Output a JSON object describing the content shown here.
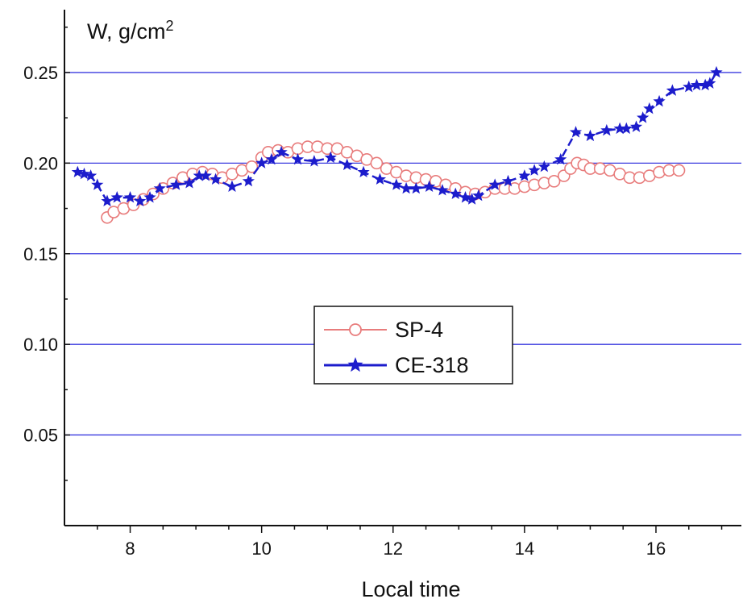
{
  "chart_data": {
    "type": "scatter",
    "title": "",
    "ylabel": "W, g/cm",
    "ylabel_sup": "2",
    "xlabel": "Local time",
    "xlim": [
      7.0,
      17.3
    ],
    "ylim": [
      0.0,
      0.29
    ],
    "x_ticks": [
      8,
      10,
      12,
      14,
      16
    ],
    "y_ticks": [
      0.05,
      0.1,
      0.15,
      0.2,
      0.25
    ],
    "y_tick_labels": [
      "0.05",
      "0.10",
      "0.15",
      "0.20",
      "0.25"
    ],
    "grid": "horizontal",
    "grid_color": "#3a3adf",
    "legend_position": "center",
    "series": [
      {
        "name": "SP-4",
        "color": "#e87c7c",
        "marker": "circle",
        "line": "solid",
        "x": [
          7.65,
          7.75,
          7.9,
          8.05,
          8.2,
          8.35,
          8.5,
          8.65,
          8.8,
          8.95,
          9.1,
          9.25,
          9.4,
          9.55,
          9.7,
          9.85,
          10.0,
          10.1,
          10.25,
          10.4,
          10.55,
          10.7,
          10.85,
          11.0,
          11.15,
          11.3,
          11.45,
          11.6,
          11.75,
          11.9,
          12.05,
          12.2,
          12.35,
          12.5,
          12.65,
          12.8,
          12.95,
          13.1,
          13.25,
          13.4,
          13.55,
          13.7,
          13.85,
          14.0,
          14.15,
          14.3,
          14.45,
          14.6,
          14.7,
          14.8,
          14.9,
          15.0,
          15.15,
          15.3,
          15.45,
          15.6,
          15.75,
          15.9,
          16.05,
          16.2,
          16.35
        ],
        "y": [
          0.17,
          0.173,
          0.175,
          0.177,
          0.18,
          0.183,
          0.186,
          0.189,
          0.192,
          0.194,
          0.195,
          0.194,
          0.192,
          0.194,
          0.196,
          0.198,
          0.203,
          0.206,
          0.207,
          0.206,
          0.208,
          0.209,
          0.209,
          0.208,
          0.208,
          0.206,
          0.204,
          0.202,
          0.2,
          0.197,
          0.195,
          0.193,
          0.192,
          0.191,
          0.19,
          0.188,
          0.186,
          0.184,
          0.183,
          0.184,
          0.186,
          0.186,
          0.186,
          0.187,
          0.188,
          0.189,
          0.19,
          0.193,
          0.197,
          0.2,
          0.199,
          0.197,
          0.197,
          0.196,
          0.194,
          0.192,
          0.192,
          0.193,
          0.195,
          0.196,
          0.196
        ]
      },
      {
        "name": "CE-318",
        "color": "#1c1ccc",
        "marker": "star",
        "line": "dashed",
        "x": [
          7.2,
          7.3,
          7.4,
          7.5,
          7.65,
          7.8,
          8.0,
          8.15,
          8.3,
          8.45,
          8.7,
          8.9,
          9.05,
          9.15,
          9.3,
          9.55,
          9.8,
          10.0,
          10.15,
          10.3,
          10.55,
          10.8,
          11.05,
          11.3,
          11.55,
          11.8,
          12.05,
          12.2,
          12.35,
          12.55,
          12.75,
          12.95,
          13.1,
          13.2,
          13.3,
          13.55,
          13.75,
          14.0,
          14.15,
          14.3,
          14.55,
          14.78,
          15.0,
          15.25,
          15.45,
          15.55,
          15.7,
          15.8,
          15.9,
          16.05,
          16.25,
          16.5,
          16.62,
          16.75,
          16.82,
          16.92
        ],
        "y": [
          0.195,
          0.194,
          0.193,
          0.188,
          0.179,
          0.181,
          0.181,
          0.179,
          0.181,
          0.186,
          0.188,
          0.189,
          0.193,
          0.193,
          0.191,
          0.187,
          0.19,
          0.2,
          0.202,
          0.206,
          0.202,
          0.201,
          0.203,
          0.199,
          0.195,
          0.191,
          0.188,
          0.186,
          0.186,
          0.187,
          0.185,
          0.183,
          0.181,
          0.18,
          0.182,
          0.188,
          0.19,
          0.193,
          0.196,
          0.198,
          0.202,
          0.217,
          0.215,
          0.218,
          0.219,
          0.219,
          0.22,
          0.225,
          0.23,
          0.234,
          0.24,
          0.242,
          0.243,
          0.243,
          0.244,
          0.25
        ]
      }
    ]
  }
}
